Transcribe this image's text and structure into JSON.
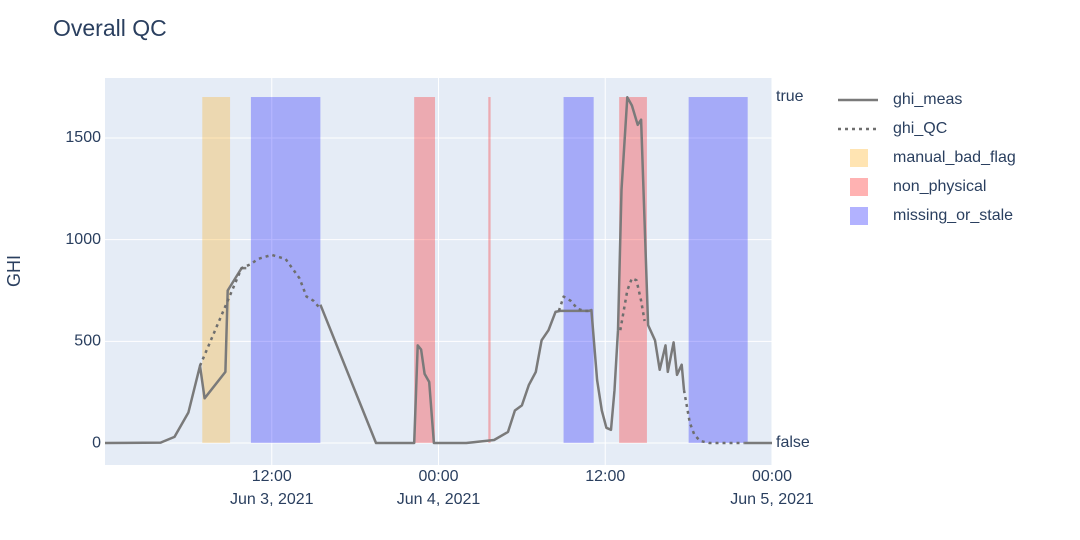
{
  "chart_data": {
    "type": "line",
    "title": "Overall QC",
    "ylabel": "GHI",
    "ylim": [
      -108,
      1795
    ],
    "yticks": [
      0,
      500,
      1000,
      1500
    ],
    "y2lim": [
      -0.064,
      1.055
    ],
    "y2ticks": [
      {
        "value": 0,
        "label": "false"
      },
      {
        "value": 1,
        "label": "true"
      }
    ],
    "xlim": [
      "2021-06-03 00:00",
      "2021-06-05 00:00"
    ],
    "xticks": [
      {
        "value": "2021-06-03 12:00",
        "label": [
          "12:00",
          "Jun 3, 2021"
        ]
      },
      {
        "value": "2021-06-04 00:00",
        "label": [
          "00:00",
          "Jun 4, 2021"
        ]
      },
      {
        "value": "2021-06-04 12:00",
        "label": [
          "12:00"
        ]
      },
      {
        "value": "2021-06-05 00:00",
        "label": [
          "00:00",
          "Jun 5, 2021"
        ]
      }
    ],
    "grid": true,
    "series": [
      {
        "name": "ghi_meas",
        "color": "#7a7a7a",
        "dash": "solid",
        "x": [
          "2021-06-03 00:00",
          "2021-06-03 04:00",
          "2021-06-03 05:00",
          "2021-06-03 06:00",
          "2021-06-03 06:50",
          "2021-06-03 07:10",
          "2021-06-03 08:40",
          "2021-06-03 08:50",
          "2021-06-03 09:50",
          "2021-06-03 10:10",
          "2021-06-03 12:00",
          "2021-06-03 15:30",
          "2021-06-03 19:30",
          "2021-06-03 22:15",
          "2021-06-03 22:30",
          "2021-06-03 22:45",
          "2021-06-03 23:00",
          "2021-06-03 23:20",
          "2021-06-03 23:40",
          "2021-06-04 02:00",
          "2021-06-04 04:00",
          "2021-06-04 05:00",
          "2021-06-04 05:30",
          "2021-06-04 06:00",
          "2021-06-04 06:30",
          "2021-06-04 07:00",
          "2021-06-04 07:25",
          "2021-06-04 07:55",
          "2021-06-04 08:25",
          "2021-06-04 08:45",
          "2021-06-04 10:50",
          "2021-06-04 11:00",
          "2021-06-04 11:25",
          "2021-06-04 11:45",
          "2021-06-04 12:05",
          "2021-06-04 12:25",
          "2021-06-04 12:40",
          "2021-06-04 12:55",
          "2021-06-04 13:10",
          "2021-06-04 13:35",
          "2021-06-04 13:55",
          "2021-06-04 14:20",
          "2021-06-04 14:35",
          "2021-06-04 15:05",
          "2021-06-04 15:35",
          "2021-06-04 15:55",
          "2021-06-04 16:20",
          "2021-06-04 16:30",
          "2021-06-04 16:55",
          "2021-06-04 17:10",
          "2021-06-04 17:30",
          "2021-06-04 17:40",
          "2021-06-04 19:00",
          "2021-06-04 22:00",
          "2021-06-05 00:00"
        ],
        "values": [
          0,
          2,
          30,
          150,
          380,
          220,
          350,
          750,
          860,
          860,
          null,
          680,
          0,
          0,
          480,
          460,
          340,
          300,
          0,
          0,
          15,
          55,
          160,
          185,
          285,
          350,
          505,
          555,
          645,
          650,
          650,
          654,
          310,
          160,
          75,
          65,
          260,
          555,
          1245,
          1700,
          1660,
          1565,
          1590,
          580,
          505,
          360,
          480,
          350,
          495,
          335,
          385,
          260,
          null,
          0,
          0
        ]
      },
      {
        "name": "ghi_QC",
        "color": "#6e6e6e",
        "dash": "dot",
        "x": [
          "2021-06-03 06:50",
          "2021-06-03 09:50",
          "2021-06-03 10:30",
          "2021-06-03 11:00",
          "2021-06-03 12:00",
          "2021-06-03 13:00",
          "2021-06-03 14:00",
          "2021-06-03 14:30",
          "2021-06-03 15:00",
          "2021-06-03 15:30",
          "2021-06-03 18:00",
          "2021-06-04 08:40",
          "2021-06-04 09:00",
          "2021-06-04 09:30",
          "2021-06-04 10:00",
          "2021-06-04 10:30",
          "2021-06-04 11:00",
          "2021-06-04 12:00",
          "2021-06-04 13:05",
          "2021-06-04 13:35",
          "2021-06-04 13:55",
          "2021-06-04 14:15",
          "2021-06-04 14:35",
          "2021-06-04 14:50",
          "2021-06-04 16:00",
          "2021-06-04 17:40",
          "2021-06-04 18:05",
          "2021-06-04 18:25",
          "2021-06-04 18:50",
          "2021-06-04 19:30",
          "2021-06-04 22:00"
        ],
        "values": [
          380,
          860,
          880,
          905,
          925,
          905,
          810,
          720,
          700,
          660,
          null,
          650,
          720,
          700,
          660,
          650,
          650,
          null,
          555,
          750,
          810,
          800,
          700,
          600,
          null,
          260,
          100,
          40,
          10,
          0,
          0
        ]
      }
    ],
    "flags": [
      {
        "name": "manual_bad_flag",
        "color": "#ffa500",
        "axis": "y2",
        "spans": [
          [
            "2021-06-03 07:00",
            "2021-06-03 09:00"
          ]
        ],
        "values": [
          1
        ]
      },
      {
        "name": "non_physical",
        "color": "#ff0000",
        "axis": "y2",
        "spans": [
          [
            "2021-06-03 22:15",
            "2021-06-03 23:45"
          ],
          [
            "2021-06-04 03:35",
            "2021-06-04 03:45"
          ],
          [
            "2021-06-04 13:00",
            "2021-06-04 15:00"
          ]
        ],
        "values": [
          1,
          1,
          1
        ]
      },
      {
        "name": "missing_or_stale",
        "color": "#0000ff",
        "axis": "y2",
        "spans": [
          [
            "2021-06-03 10:30",
            "2021-06-03 15:30"
          ],
          [
            "2021-06-04 09:00",
            "2021-06-04 11:10"
          ],
          [
            "2021-06-04 18:00",
            "2021-06-04 22:15"
          ]
        ],
        "values": [
          1,
          1,
          1
        ]
      }
    ]
  }
}
